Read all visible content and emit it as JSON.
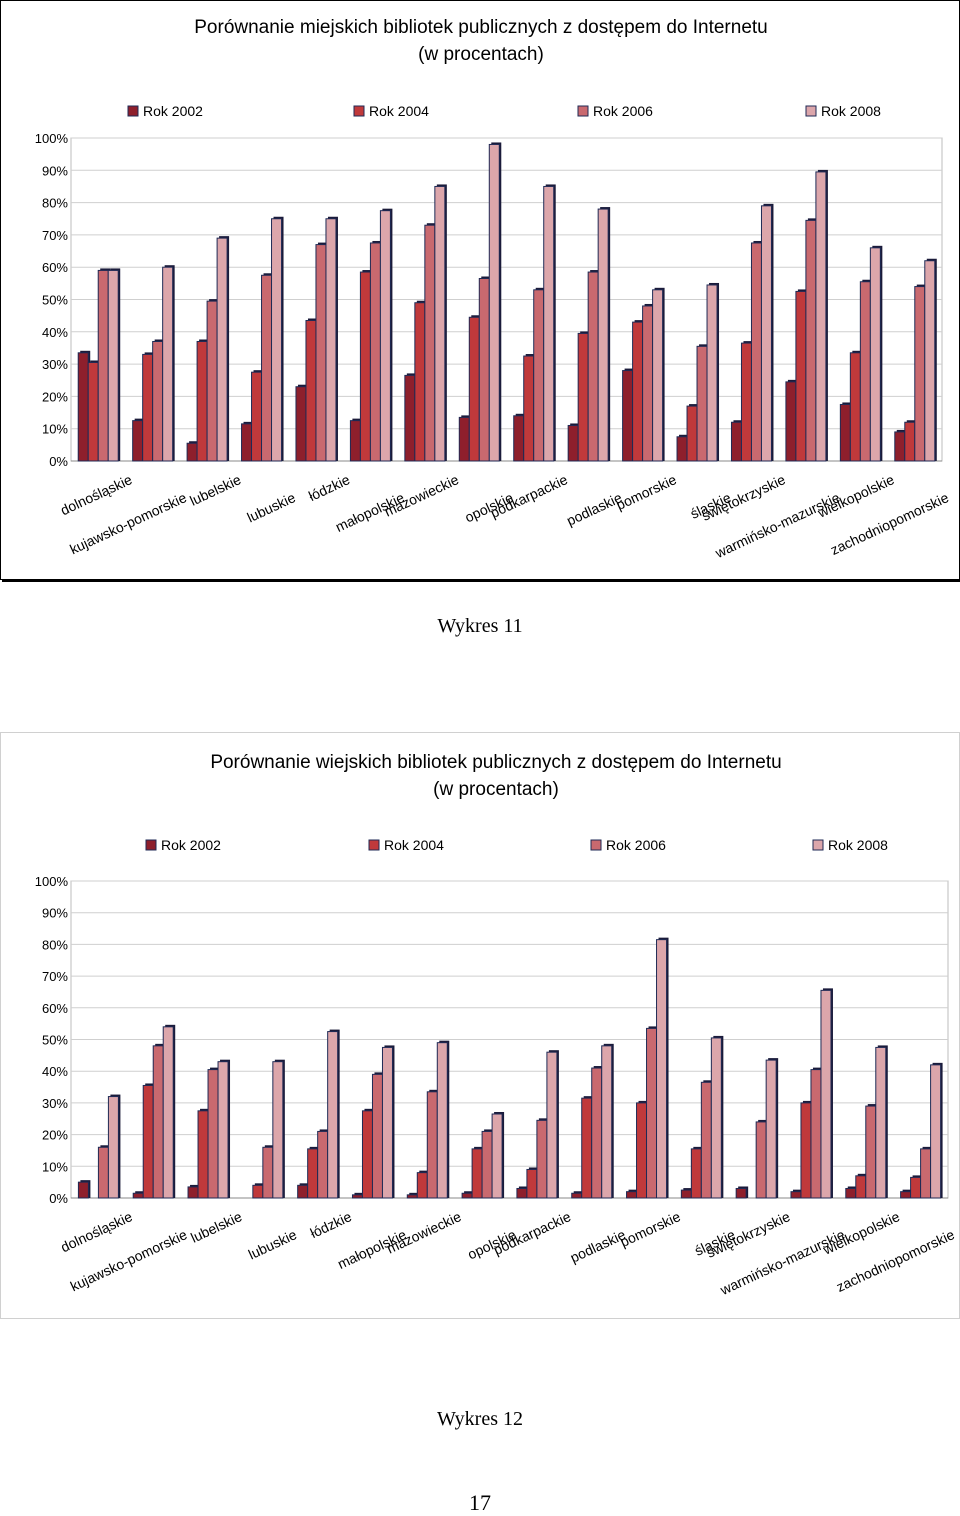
{
  "page": {
    "page_number": "17"
  },
  "captions": {
    "chart1": "Wykres 11",
    "chart2": "Wykres 12"
  },
  "chart_data": [
    {
      "type": "bar",
      "title": "Porównanie miejskich bibliotek publicznych z dostępem do Internetu",
      "subtitle": "(w procentach)",
      "categories": [
        "dolnośląskie",
        "kujawsko-pomorskie",
        "lubelskie",
        "lubuskie",
        "łódzkie",
        "małopolskie",
        "mazowieckie",
        "opolskie",
        "podkarpackie",
        "podlaskie",
        "pomorskie",
        "śląskie",
        "świętokrzyskie",
        "warmińsko-mazurskie",
        "wielkopolskie",
        "zachodniopomorskie"
      ],
      "series": [
        {
          "name": "Rok 2002",
          "values": [
            33.5,
            12.5,
            5.5,
            11.5,
            23,
            12.5,
            26.5,
            13.5,
            14,
            11,
            28,
            7.5,
            12,
            24.5,
            17.5,
            9
          ]
        },
        {
          "name": "Rok 2004",
          "values": [
            30.5,
            33,
            37,
            27.5,
            43.5,
            58.5,
            49,
            44.5,
            32.5,
            39.5,
            43,
            17,
            36.5,
            52.5,
            33.5,
            12
          ]
        },
        {
          "name": "Rok 2006",
          "values": [
            59,
            37,
            49.5,
            57.5,
            67,
            67.5,
            73,
            56.5,
            53,
            58.5,
            48,
            35.5,
            67.5,
            74.5,
            55.5,
            54
          ]
        },
        {
          "name": "Rok 2008",
          "values": [
            59,
            60,
            69,
            75,
            75,
            77.5,
            85,
            98,
            85,
            78,
            53,
            54.5,
            79,
            89.5,
            66,
            62
          ]
        }
      ],
      "ylim": [
        0,
        100
      ],
      "yticks": [
        "0%",
        "10%",
        "20%",
        "30%",
        "40%",
        "50%",
        "60%",
        "70%",
        "80%",
        "90%",
        "100%"
      ],
      "legend_position": "top",
      "grid": true,
      "colors": [
        "#8e1f2c",
        "#c0393b",
        "#c9696f",
        "#dca6ab"
      ]
    },
    {
      "type": "bar",
      "title": "Porównanie wiejskich bibliotek publicznych z dostępem do Internetu",
      "subtitle": "(w procentach)",
      "categories": [
        "dolnośląskie",
        "kujawsko-pomorskie",
        "lubelskie",
        "lubuskie",
        "łódzkie",
        "małopolskie",
        "mazowieckie",
        "opolskie",
        "podkarpackie",
        "podlaskie",
        "pomorskie",
        "śląskie",
        "świętokrzyskie",
        "warmińsko-mazurskie",
        "wielkopolskie",
        "zachodniopomorskie"
      ],
      "series": [
        {
          "name": "Rok 2002",
          "values": [
            5,
            1.5,
            3.5,
            0,
            4,
            1,
            1,
            1.5,
            3,
            1.5,
            2,
            2.5,
            3,
            2,
            3,
            2
          ]
        },
        {
          "name": "Rok 2004",
          "values": [
            0,
            35.5,
            27.5,
            4,
            15.5,
            27.5,
            8,
            15.5,
            9,
            31.5,
            30,
            15.5,
            0,
            30,
            7,
            6.5
          ]
        },
        {
          "name": "Rok 2006",
          "values": [
            16,
            48,
            40.5,
            16,
            21,
            39,
            33.5,
            21,
            24.5,
            41,
            53.5,
            36.5,
            24,
            40.5,
            29,
            15.5
          ]
        },
        {
          "name": "Rok 2008",
          "values": [
            32,
            54,
            43,
            43,
            52.5,
            47.5,
            49,
            26.5,
            46,
            48,
            81.5,
            50.5,
            43.5,
            65.5,
            47.5,
            42
          ]
        }
      ],
      "ylim": [
        0,
        100
      ],
      "yticks": [
        "0%",
        "10%",
        "20%",
        "30%",
        "40%",
        "50%",
        "60%",
        "70%",
        "80%",
        "90%",
        "100%"
      ],
      "legend_position": "top",
      "grid": true,
      "colors": [
        "#8e1f2c",
        "#c0393b",
        "#c9696f",
        "#dca6ab"
      ]
    }
  ]
}
